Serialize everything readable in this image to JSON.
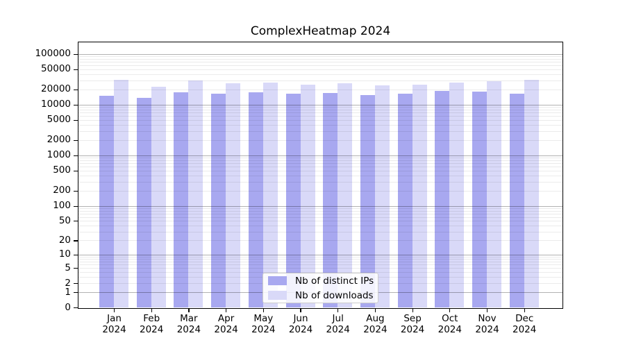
{
  "figure": {
    "title": "ComplexHeatmap 2024",
    "background_color": "#ffffff"
  },
  "chart_data": {
    "type": "bar",
    "title": "ComplexHeatmap 2024",
    "xlabel": "",
    "ylabel": "",
    "year": "2024",
    "categories": [
      [
        "Jan",
        "2024"
      ],
      [
        "Feb",
        "2024"
      ],
      [
        "Mar",
        "2024"
      ],
      [
        "Apr",
        "2024"
      ],
      [
        "May",
        "2024"
      ],
      [
        "Jun",
        "2024"
      ],
      [
        "Jul",
        "2024"
      ],
      [
        "Aug",
        "2024"
      ],
      [
        "Sep",
        "2024"
      ],
      [
        "Oct",
        "2024"
      ],
      [
        "Nov",
        "2024"
      ],
      [
        "Dec",
        "2024"
      ]
    ],
    "series": [
      {
        "name": "Nb of distinct IPs",
        "color": "#a8a8f0",
        "values": [
          15000,
          13800,
          17300,
          16300,
          17300,
          16300,
          17200,
          15600,
          16500,
          18700,
          17900,
          16700
        ]
      },
      {
        "name": "Nb of downloads",
        "color": "#d9d9f8",
        "values": [
          31000,
          22800,
          29600,
          26700,
          27500,
          24800,
          26400,
          24000,
          25000,
          27200,
          29300,
          31000
        ]
      }
    ],
    "y_scale": "log10(value+1)",
    "y_axis_ticks": [
      100000,
      50000,
      20000,
      10000,
      5000,
      2000,
      1000,
      500,
      200,
      100,
      50,
      20,
      10,
      5,
      2,
      1,
      0
    ],
    "ylim": [
      0,
      170000
    ],
    "grid": {
      "major_color": "rgba(0,0,0,0.30)",
      "minor_color": "rgba(0,0,0,0.08)",
      "orientation": "horizontal",
      "drawn_above_bars": true
    },
    "legend": {
      "position": "lower center",
      "entries": [
        "Nb of distinct IPs",
        "Nb of downloads"
      ]
    },
    "axis_color": "#000000",
    "tick_label_color": "#000000"
  }
}
